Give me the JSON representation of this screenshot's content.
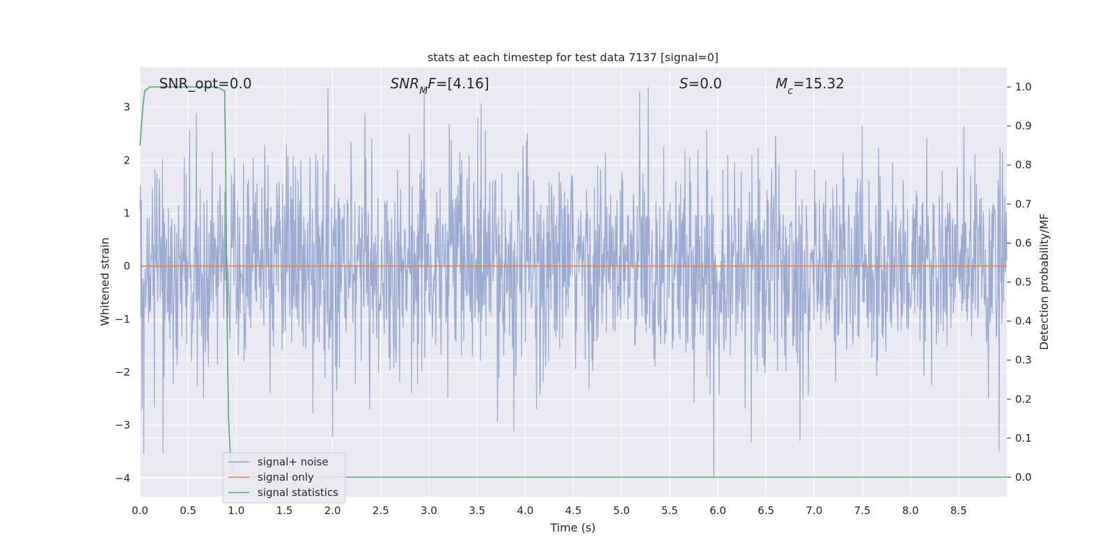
{
  "chart_data": {
    "type": "line",
    "title": "stats at each timestep for test data 7137 [signal=0]",
    "xlabel": "Time (s)",
    "ylabel": "Whitened strain",
    "ylabel_right": "Detection probability/MF",
    "xlim": [
      0.0,
      9.0
    ],
    "ylim": [
      -4.35,
      3.75
    ],
    "ylim_right": [
      -0.05,
      1.05
    ],
    "x_ticks": [
      0.0,
      0.5,
      1.0,
      1.5,
      2.0,
      2.5,
      3.0,
      3.5,
      4.0,
      4.5,
      5.0,
      5.5,
      6.0,
      6.5,
      7.0,
      7.5,
      8.0,
      8.5
    ],
    "x_tick_labels": [
      "0.0",
      "0.5",
      "1.0",
      "1.5",
      "2.0",
      "2.5",
      "3.0",
      "3.5",
      "4.0",
      "4.5",
      "5.0",
      "5.5",
      "6.0",
      "6.5",
      "7.0",
      "7.5",
      "8.0",
      "8.5"
    ],
    "y_ticks": [
      3,
      2,
      1,
      0,
      -1,
      -2,
      -3,
      -4
    ],
    "y_tick_labels": [
      "3",
      "2",
      "1",
      "0",
      "−1",
      "−2",
      "−3",
      "−4"
    ],
    "y_right_ticks": [
      1.0,
      0.9,
      0.8,
      0.7,
      0.6,
      0.5,
      0.4,
      0.3,
      0.2,
      0.1,
      0.0
    ],
    "y_right_tick_labels": [
      "1.0",
      "0.9",
      "0.8",
      "0.7",
      "0.6",
      "0.5",
      "0.4",
      "0.3",
      "0.2",
      "0.1",
      "0.0"
    ],
    "annotations": [
      {
        "text": "SNR_opt=0.0",
        "x": 0.2,
        "y": 3.45
      },
      {
        "text": "SNR_MF=[4.16]",
        "x": 2.6,
        "y": 3.45
      },
      {
        "text": "S=0.0",
        "x": 5.6,
        "y": 3.45
      },
      {
        "text": "M_c=15.32",
        "x": 6.6,
        "y": 3.45
      }
    ],
    "legend_position": "lower-left",
    "grid": true,
    "series": [
      {
        "name": "signal+ noise",
        "color": "#8da0cb",
        "axis": "left",
        "style": "noise",
        "duration": 9.0,
        "samples": 1800,
        "amplitude_sigma": 1.0,
        "peaks": [
          {
            "x": 1.95,
            "y": 3.35
          },
          {
            "x": 2.0,
            "y": -3.22
          },
          {
            "x": 2.95,
            "y": 3.4
          },
          {
            "x": 5.28,
            "y": 3.38
          },
          {
            "x": 5.96,
            "y": -4.0
          },
          {
            "x": 8.92,
            "y": -3.5
          },
          {
            "x": 3.88,
            "y": -3.12
          },
          {
            "x": 6.35,
            "y": -3.32
          },
          {
            "x": 0.02,
            "y": -2.7
          }
        ]
      },
      {
        "name": "signal only",
        "color": "#dd8452",
        "axis": "left",
        "x": [
          0.0,
          9.0
        ],
        "y": [
          0.0,
          0.0
        ]
      },
      {
        "name": "signal statistics",
        "color": "#55a868",
        "axis": "right",
        "x": [
          0.0,
          0.03,
          0.05,
          0.1,
          0.2,
          0.5,
          0.8,
          0.88,
          0.89,
          0.9,
          0.91,
          0.92,
          0.94,
          0.96,
          1.0,
          9.0
        ],
        "y": [
          0.85,
          0.95,
          0.99,
          1.0,
          1.0,
          1.0,
          1.0,
          0.99,
          0.8,
          0.5,
          0.3,
          0.15,
          0.05,
          0.02,
          0.0,
          0.0
        ]
      }
    ]
  }
}
